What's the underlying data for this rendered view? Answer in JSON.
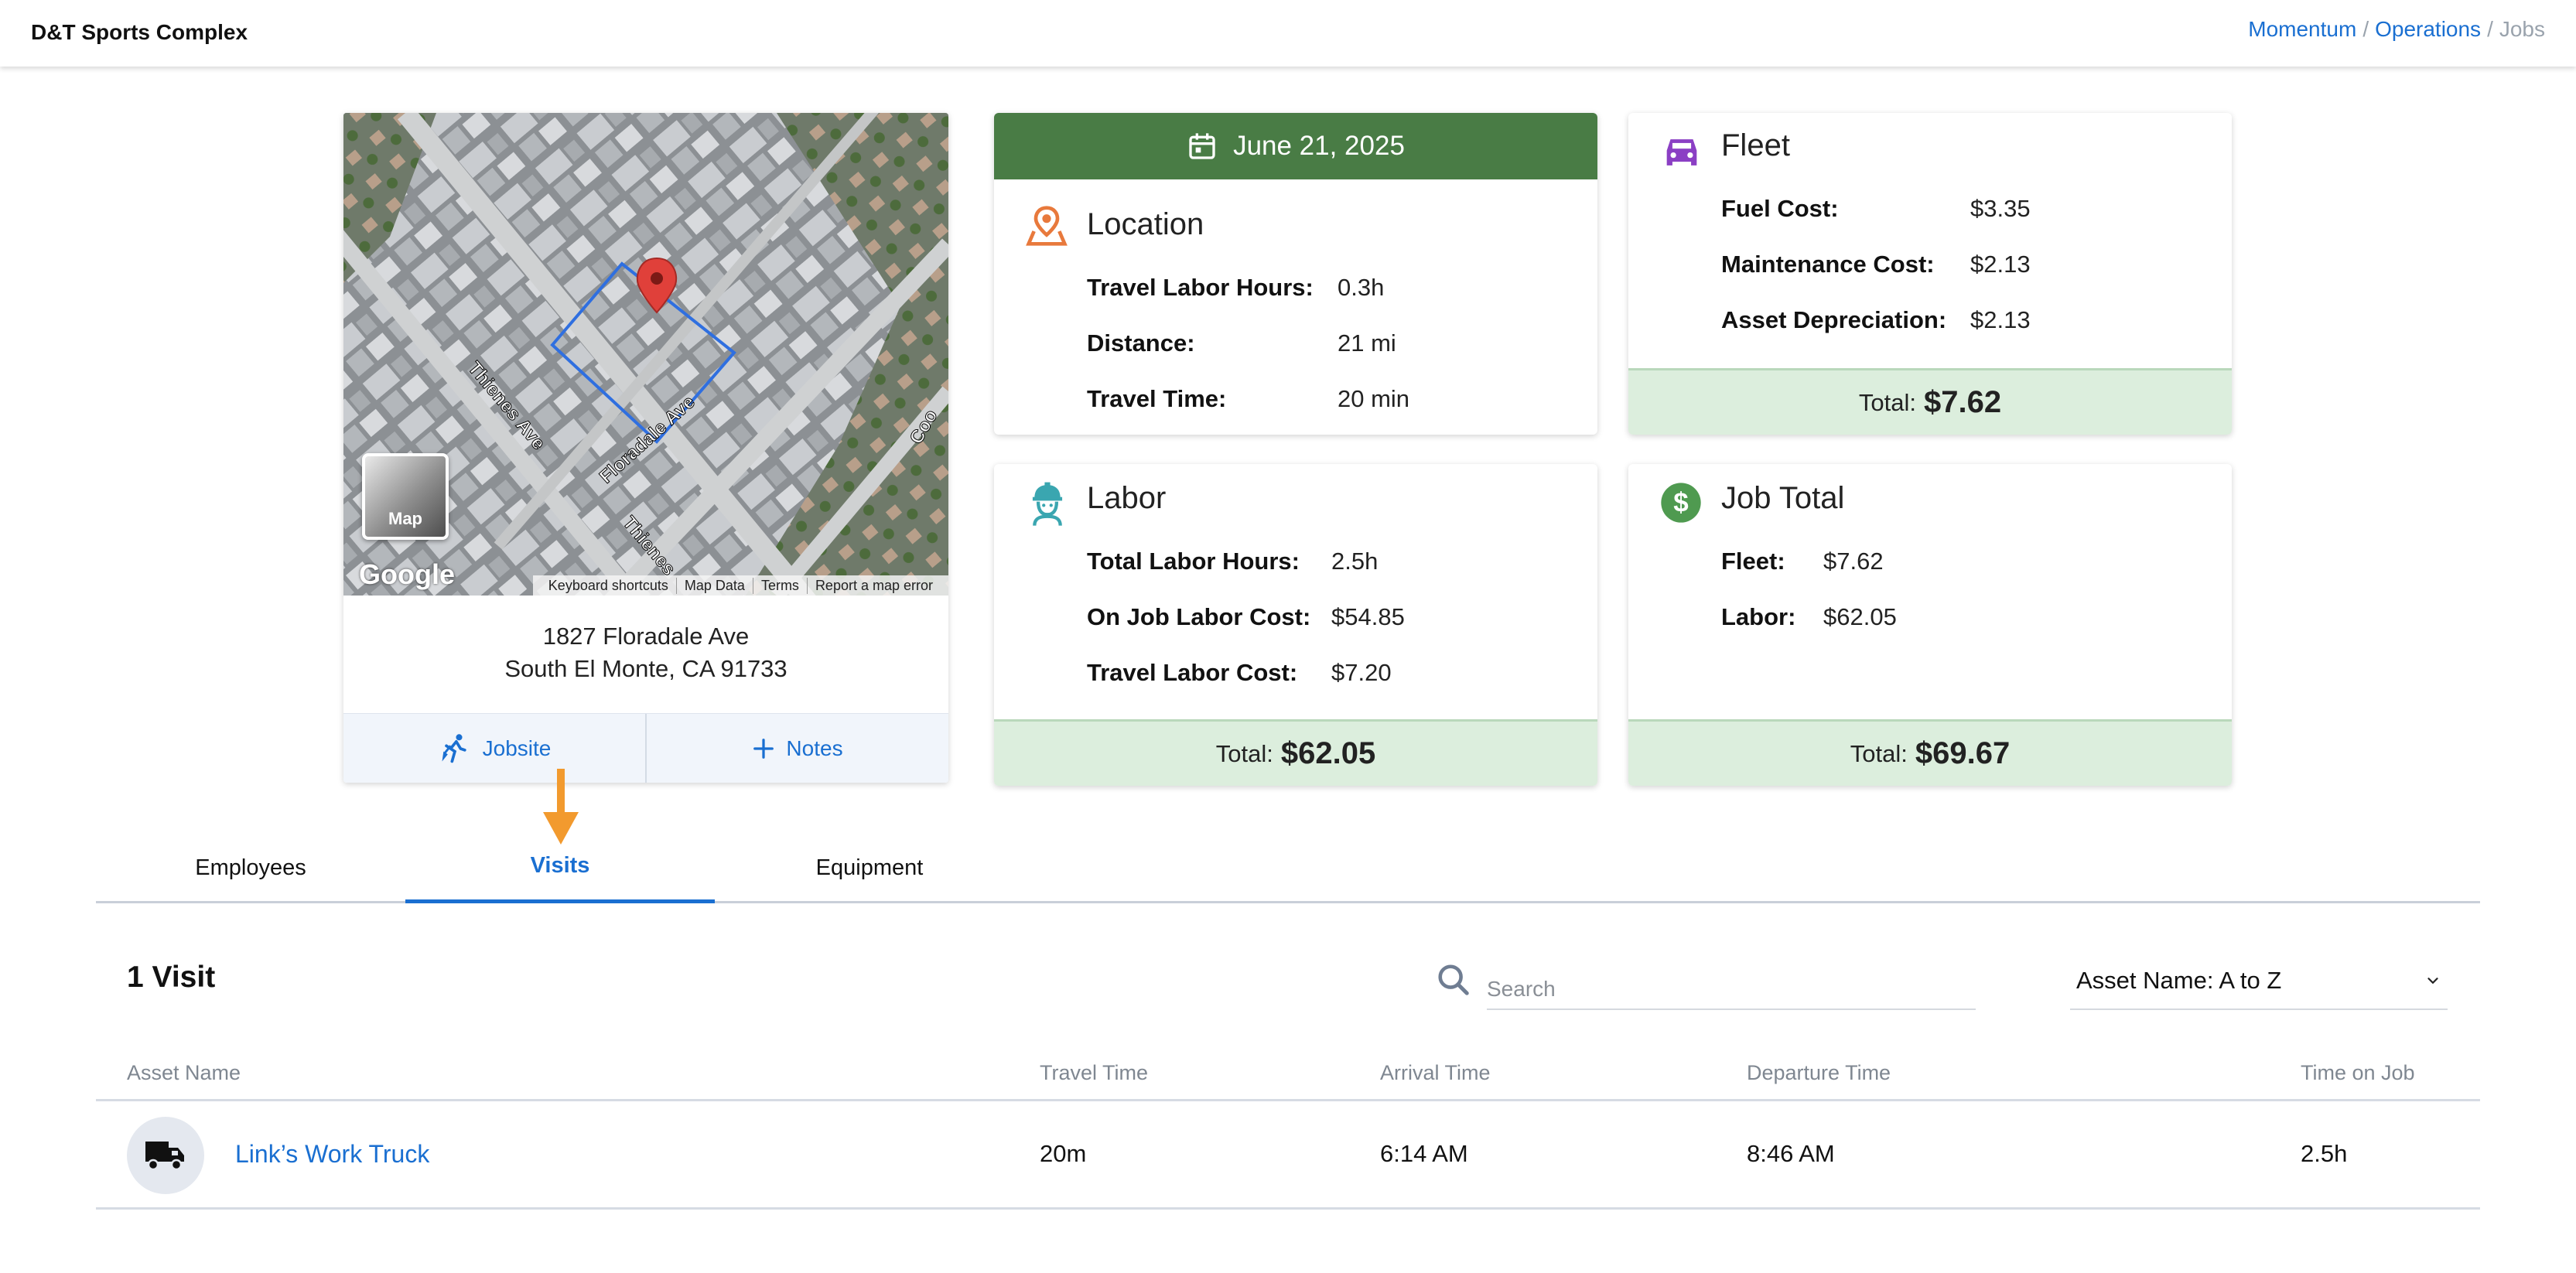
{
  "header": {
    "title": "D&T Sports Complex",
    "breadcrumb": [
      "Momentum",
      "Operations",
      "Jobs"
    ]
  },
  "map": {
    "street_labels": [
      "Thienes Ave",
      "Floradale Ave",
      "Thienes",
      "Coo"
    ],
    "toggle_label": "Map",
    "logo": "Google",
    "footer": [
      "Keyboard shortcuts",
      "Map Data",
      "Terms",
      "Report a map error"
    ],
    "address_line1": "1827 Floradale Ave",
    "address_line2": "South El Monte, CA 91733",
    "jobsite_label": "Jobsite",
    "notes_label": "Notes"
  },
  "location": {
    "date": "June 21, 2025",
    "title": "Location",
    "rows": [
      {
        "label": "Travel Labor Hours:",
        "value": "0.3h"
      },
      {
        "label": "Distance:",
        "value": "21 mi"
      },
      {
        "label": "Travel Time:",
        "value": "20 min"
      }
    ]
  },
  "fleet": {
    "title": "Fleet",
    "rows": [
      {
        "label": "Fuel Cost:",
        "value": "$3.35"
      },
      {
        "label": "Maintenance Cost:",
        "value": "$2.13"
      },
      {
        "label": "Asset Depreciation:",
        "value": "$2.13"
      }
    ],
    "total_label": "Total:",
    "total_value": "$7.62"
  },
  "labor": {
    "title": "Labor",
    "rows": [
      {
        "label": "Total Labor Hours:",
        "value": "2.5h"
      },
      {
        "label": "On Job Labor Cost:",
        "value": "$54.85"
      },
      {
        "label": "Travel Labor Cost:",
        "value": "$7.20"
      }
    ],
    "total_label": "Total:",
    "total_value": "$62.05"
  },
  "job_total": {
    "title": "Job Total",
    "rows": [
      {
        "label": "Fleet:",
        "value": "$7.62"
      },
      {
        "label": "Labor:",
        "value": "$62.05"
      }
    ],
    "total_label": "Total:",
    "total_value": "$69.67"
  },
  "tabs": [
    {
      "label": "Employees",
      "active": false
    },
    {
      "label": "Visits",
      "active": true
    },
    {
      "label": "Equipment",
      "active": false
    }
  ],
  "visits": {
    "count_label": "1 Visit",
    "search_placeholder": "Search",
    "sort_label": "Asset Name: A to Z",
    "columns": [
      "Asset Name",
      "Travel Time",
      "Arrival Time",
      "Departure Time",
      "Time on Job"
    ],
    "rows": [
      {
        "asset": "Link’s Work Truck",
        "travel": "20m",
        "arrival": "6:14 AM",
        "departure": "8:46 AM",
        "time_on_job": "2.5h"
      }
    ]
  },
  "colors": {
    "accent": "#1a6fd1",
    "date_header": "#497c45",
    "total_bg": "#dceedd",
    "location_icon": "#e8793c",
    "fleet_icon": "#8b3fc4",
    "labor_icon": "#3aa6b0",
    "job_total_icon": "#4f9a50",
    "arrow": "#f29a2e"
  }
}
